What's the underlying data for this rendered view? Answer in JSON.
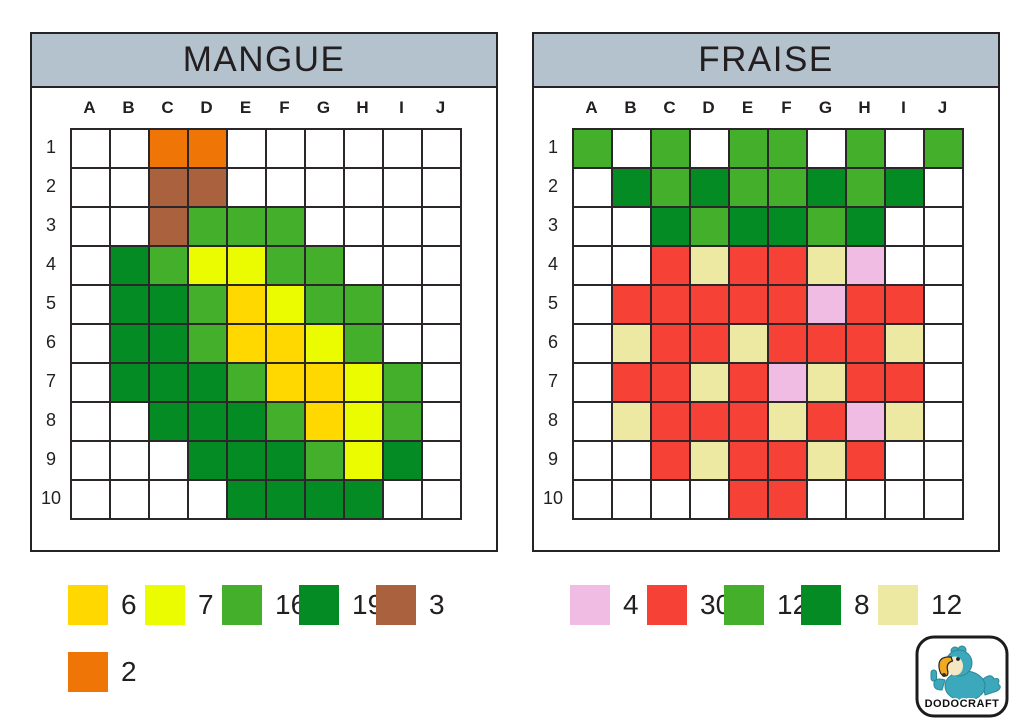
{
  "panels": [
    {
      "title": "MANGUE",
      "columns": [
        "A",
        "B",
        "C",
        "D",
        "E",
        "F",
        "G",
        "H",
        "I",
        "J"
      ],
      "rows": [
        "1",
        "2",
        "3",
        "4",
        "5",
        "6",
        "7",
        "8",
        "9",
        "10"
      ],
      "grid": [
        "..OO......",
        "..BB......",
        "..BGGG....",
        ".DGYYGG...",
        ".DDGLYGG..",
        ".DDGLLYG..",
        ".DDDGLLYG.",
        "..DDDGLYG.",
        "...DDDGYD.",
        "....DDDD.."
      ]
    },
    {
      "title": "FRAISE",
      "columns": [
        "A",
        "B",
        "C",
        "D",
        "E",
        "F",
        "G",
        "H",
        "I",
        "J"
      ],
      "rows": [
        "1",
        "2",
        "3",
        "4",
        "5",
        "6",
        "7",
        "8",
        "9",
        "10"
      ],
      "grid": [
        "G.G.GG.G.G",
        ".DGDGGDGD.",
        "..DGDDGD..",
        "..RCRRCP..",
        ".RRRRRPRR.",
        ".CRRCRRRC.",
        ".RRCRPCRR.",
        ".CRRRCRPC.",
        "..RCRRCR..",
        "....RR...."
      ]
    }
  ],
  "legends": {
    "mangue_row1": [
      {
        "color": "gold",
        "count": "6"
      },
      {
        "color": "yellow",
        "count": "7"
      },
      {
        "color": "green",
        "count": "16"
      },
      {
        "color": "darkgreen",
        "count": "19"
      },
      {
        "color": "brown",
        "count": "3"
      }
    ],
    "mangue_row2": [
      {
        "color": "orange",
        "count": "2"
      }
    ],
    "fraise": [
      {
        "color": "pink",
        "count": "4"
      },
      {
        "color": "red",
        "count": "30"
      },
      {
        "color": "green",
        "count": "12"
      },
      {
        "color": "darkgreen",
        "count": "8"
      },
      {
        "color": "cream",
        "count": "12"
      }
    ]
  },
  "palette": {
    "orange": "#EF7506",
    "brown": "#A9613E",
    "green": "#43AF2B",
    "darkgreen": "#048B23",
    "gold": "#FFD800",
    "yellow": "#ECFC00",
    "red": "#F54136",
    "pink": "#F0BCE4",
    "cream": "#EDE9A2"
  },
  "color_keys": {
    "O": "orange",
    "B": "brown",
    "G": "green",
    "D": "darkgreen",
    "L": "gold",
    "Y": "yellow",
    "R": "red",
    "P": "pink",
    "C": "cream"
  },
  "colors": {
    "header_bg": "#B4C2CE",
    "grid_line": "#2B2629",
    "panel_border": "#262226",
    "text": "#231F20",
    "logo_teal": "#3BA9BB",
    "logo_beak": "#F0A921",
    "logo_face": "#F5E7C4"
  },
  "logo": {
    "text": "DODOCRAFT"
  }
}
